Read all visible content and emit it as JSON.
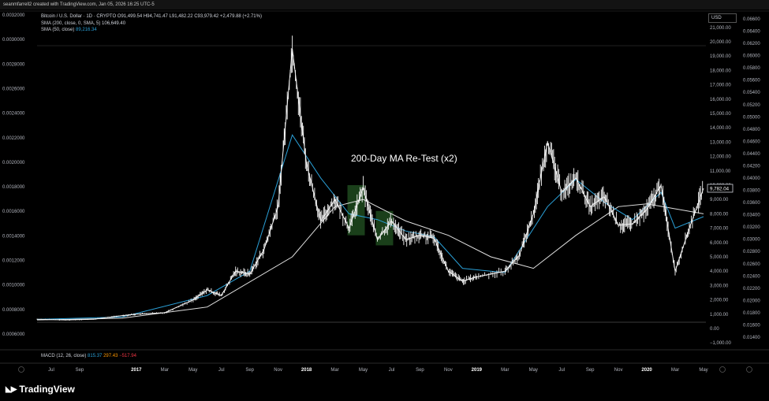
{
  "header": {
    "attribution": "seanmfarrell2 created with TradingView.com, Jan 05, 2026 16:25 UTC-5"
  },
  "legend": {
    "symbol_line": "Bitcoin / U.S. Dollar · 1D · CRYPTO  O91,499.54  H94,741.47  L91,482.22  C93,979.42  +2,479.88 (+2.71%)",
    "sma200": "SMA (200, close, 0, SMA, 5)  106,649.40",
    "sma50_label": "SMA (50, close)",
    "sma50_value": "89,216.34"
  },
  "macd": {
    "label": "MACD (12, 26, close)",
    "v1": "815.37",
    "v2": "297.43",
    "v3": "−517.94"
  },
  "currency": "USD",
  "brand": {
    "logo_icon": "tradingview-logo-icon",
    "name": "TradingView"
  },
  "chart_data": {
    "type": "line",
    "annotation": "200-Day MA Re-Test (x2)",
    "last_price_label": "9,782.04",
    "left_axis": [
      "0.0032000",
      "0.0030000",
      "0.0028000",
      "0.0026000",
      "0.0024000",
      "0.0022000",
      "0.0020000",
      "0.0018000",
      "0.0016000",
      "0.0014000",
      "0.0012000",
      "0.0010000",
      "0.0008000",
      "0.0006000"
    ],
    "usd_axis": [
      "21,000.00",
      "20,000.00",
      "19,000.00",
      "18,000.00",
      "17,000.00",
      "16,000.00",
      "15,000.00",
      "14,000.00",
      "13,000.00",
      "12,000.00",
      "11,000.00",
      "10,000.00",
      "9,000.00",
      "8,000.00",
      "7,000.00",
      "6,000.00",
      "5,000.00",
      "4,000.00",
      "3,000.00",
      "2,000.00",
      "1,000.00",
      "0.00",
      "−1,000.00"
    ],
    "right_axis": [
      "0.06600",
      "0.06400",
      "0.06200",
      "0.06000",
      "0.05800",
      "0.05600",
      "0.05400",
      "0.05200",
      "0.05000",
      "0.04800",
      "0.04600",
      "0.04400",
      "0.04200",
      "0.04000",
      "0.03800",
      "0.03600",
      "0.03400",
      "0.03200",
      "0.03000",
      "0.02800",
      "0.02600",
      "0.02400",
      "0.02200",
      "0.02000",
      "0.01800",
      "0.01600",
      "0.01400"
    ],
    "x_labels": [
      "Jul",
      "Sep",
      "2017",
      "Mar",
      "May",
      "Jul",
      "Sep",
      "Nov",
      "2018",
      "Mar",
      "May",
      "Jul",
      "Sep",
      "Nov",
      "2019",
      "Mar",
      "May",
      "Jul",
      "Sep",
      "Nov",
      "2020",
      "Mar",
      "May"
    ],
    "price_path": [
      [
        "2016-06",
        650
      ],
      [
        "2016-08",
        600
      ],
      [
        "2016-10",
        650
      ],
      [
        "2016-12",
        900
      ],
      [
        "2017-01",
        1000
      ],
      [
        "2017-03",
        1100
      ],
      [
        "2017-05",
        2000
      ],
      [
        "2017-06",
        2700
      ],
      [
        "2017-07",
        2300
      ],
      [
        "2017-08",
        4000
      ],
      [
        "2017-09",
        3800
      ],
      [
        "2017-10",
        5500
      ],
      [
        "2017-11",
        8500
      ],
      [
        "2017-12",
        19500
      ],
      [
        "2018-01",
        11500
      ],
      [
        "2018-02",
        7500
      ],
      [
        "2018-03",
        9000
      ],
      [
        "2018-04",
        7000
      ],
      [
        "2018-05",
        9800
      ],
      [
        "2018-06",
        6200
      ],
      [
        "2018-07",
        7500
      ],
      [
        "2018-08",
        6200
      ],
      [
        "2018-09",
        6500
      ],
      [
        "2018-10",
        6300
      ],
      [
        "2018-11",
        4000
      ],
      [
        "2018-12",
        3300
      ],
      [
        "2019-01",
        3600
      ],
      [
        "2019-03",
        4000
      ],
      [
        "2019-04",
        5100
      ],
      [
        "2019-05",
        8000
      ],
      [
        "2019-06",
        13000
      ],
      [
        "2019-07",
        9500
      ],
      [
        "2019-08",
        10500
      ],
      [
        "2019-09",
        8500
      ],
      [
        "2019-10",
        9200
      ],
      [
        "2019-11",
        7200
      ],
      [
        "2019-12",
        7300
      ],
      [
        "2020-01",
        8300
      ],
      [
        "2020-02",
        10000
      ],
      [
        "2020-03",
        4000
      ],
      [
        "2020-04",
        7000
      ],
      [
        "2020-05",
        9782
      ]
    ],
    "sma200_path": [
      [
        "2016-06",
        600
      ],
      [
        "2016-12",
        720
      ],
      [
        "2017-06",
        1500
      ],
      [
        "2017-12",
        5000
      ],
      [
        "2018-03",
        8500
      ],
      [
        "2018-05",
        9000
      ],
      [
        "2018-08",
        7500
      ],
      [
        "2018-11",
        6500
      ],
      [
        "2019-02",
        5000
      ],
      [
        "2019-05",
        4200
      ],
      [
        "2019-08",
        6500
      ],
      [
        "2019-11",
        8500
      ],
      [
        "2020-01",
        8700
      ],
      [
        "2020-05",
        8000
      ]
    ],
    "sma50_path": [
      [
        "2016-06",
        640
      ],
      [
        "2016-12",
        800
      ],
      [
        "2017-06",
        2300
      ],
      [
        "2017-09",
        4000
      ],
      [
        "2017-12",
        13500
      ],
      [
        "2018-02",
        10500
      ],
      [
        "2018-04",
        8000
      ],
      [
        "2018-06",
        7600
      ],
      [
        "2018-08",
        6800
      ],
      [
        "2018-10",
        6400
      ],
      [
        "2018-12",
        4200
      ],
      [
        "2019-03",
        3900
      ],
      [
        "2019-06",
        8500
      ],
      [
        "2019-08",
        10400
      ],
      [
        "2019-10",
        8800
      ],
      [
        "2019-12",
        7600
      ],
      [
        "2020-02",
        9500
      ],
      [
        "2020-03",
        7000
      ],
      [
        "2020-05",
        7800
      ]
    ],
    "retest_zones": [
      {
        "from": "2018-04",
        "to": "2018-05",
        "low": 6500,
        "high": 10000
      },
      {
        "from": "2018-06",
        "to": "2018-07",
        "low": 5800,
        "high": 8200
      }
    ]
  }
}
